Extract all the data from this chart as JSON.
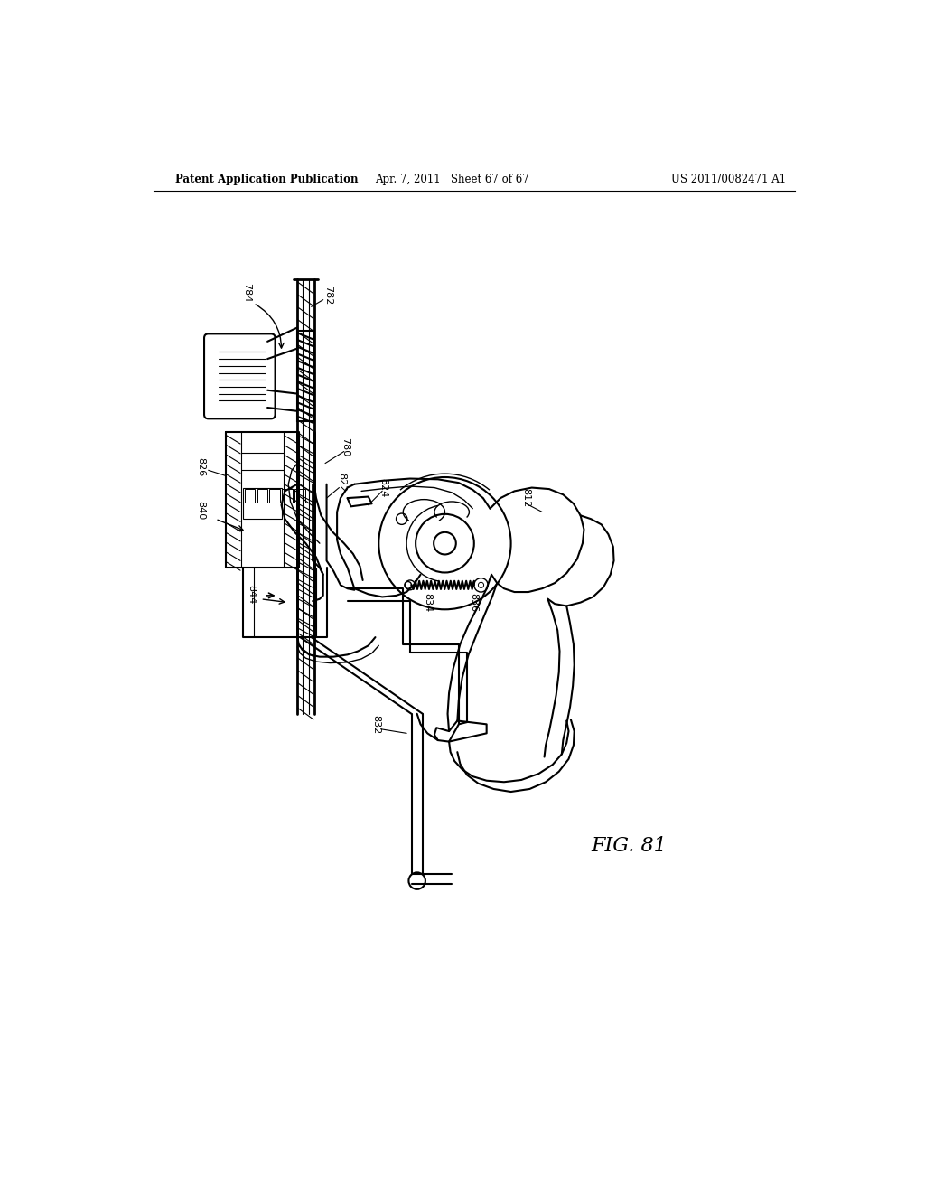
{
  "bg_color": "#ffffff",
  "line_color": "#000000",
  "header_left": "Patent Application Publication",
  "header_center": "Apr. 7, 2011   Sheet 67 of 67",
  "header_right": "US 2011/0082471 A1",
  "figure_label": "FIG. 81"
}
